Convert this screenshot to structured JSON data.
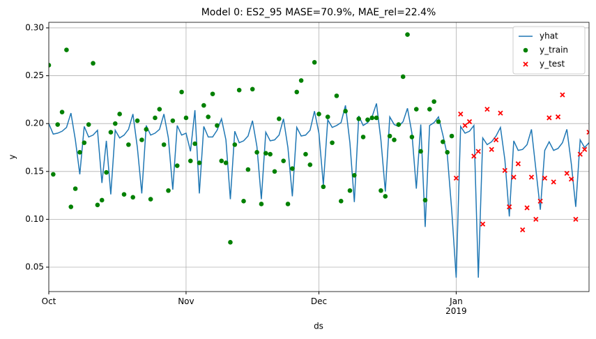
{
  "chart_data": {
    "type": "line",
    "title": "Model 0: ES2_95 MASE=70.9%, MAE_rel=22.4%",
    "x_label": "ds",
    "y_label": "y",
    "x": [
      0,
      1,
      2,
      3,
      4,
      5,
      6,
      7,
      8,
      9,
      10,
      11,
      12,
      13,
      14,
      15,
      16,
      17,
      18,
      19,
      20,
      21,
      22,
      23,
      24,
      25,
      26,
      27,
      28,
      29,
      30,
      31,
      32,
      33,
      34,
      35,
      36,
      37,
      38,
      39,
      40,
      41,
      42,
      43,
      44,
      45,
      46,
      47,
      48,
      49,
      50,
      51,
      52,
      53,
      54,
      55,
      56,
      57,
      58,
      59,
      60,
      61,
      62,
      63,
      64,
      65,
      66,
      67,
      68,
      69,
      70,
      71,
      72,
      73,
      74,
      75,
      76,
      77,
      78,
      79,
      80,
      81,
      82,
      83,
      84,
      85,
      86,
      87,
      88,
      89,
      90,
      91,
      92,
      93,
      94,
      95,
      96,
      97,
      98,
      99,
      100,
      101,
      102,
      103,
      104,
      105,
      106,
      107,
      108,
      109,
      110,
      111,
      112,
      113,
      114,
      115,
      116,
      117,
      118,
      119,
      120,
      121,
      122
    ],
    "xlim": [
      0,
      122
    ],
    "xticks": [
      {
        "value": 0,
        "label": "Oct"
      },
      {
        "value": 31,
        "label": "Nov"
      },
      {
        "value": 61,
        "label": "Dec"
      },
      {
        "value": 92,
        "label": "Jan\n2019"
      }
    ],
    "ylim": [
      0.0245,
      0.3058
    ],
    "yticks": [
      {
        "value": 0.05,
        "label": "0.05"
      },
      {
        "value": 0.1,
        "label": "0.10"
      },
      {
        "value": 0.15,
        "label": "0.15"
      },
      {
        "value": 0.2,
        "label": "0.20"
      },
      {
        "value": 0.25,
        "label": "0.25"
      },
      {
        "value": 0.3,
        "label": "0.30"
      }
    ],
    "grid": true,
    "legend": "upper right",
    "series": [
      {
        "name": "yhat",
        "type": "line",
        "color": "#1f77b4",
        "values": [
          0.2,
          0.189,
          0.19,
          0.192,
          0.196,
          0.211,
          0.183,
          0.147,
          0.197,
          0.186,
          0.188,
          0.193,
          0.138,
          0.182,
          0.126,
          0.193,
          0.185,
          0.188,
          0.194,
          0.21,
          0.175,
          0.127,
          0.198,
          0.188,
          0.19,
          0.194,
          0.21,
          0.185,
          0.131,
          0.198,
          0.188,
          0.19,
          0.171,
          0.214,
          0.127,
          0.197,
          0.186,
          0.186,
          0.193,
          0.205,
          0.183,
          0.121,
          0.192,
          0.18,
          0.182,
          0.187,
          0.203,
          0.176,
          0.121,
          0.191,
          0.182,
          0.183,
          0.188,
          0.205,
          0.175,
          0.124,
          0.196,
          0.187,
          0.188,
          0.193,
          0.213,
          0.19,
          0.136,
          0.204,
          0.196,
          0.198,
          0.201,
          0.219,
          0.18,
          0.118,
          0.208,
          0.198,
          0.201,
          0.207,
          0.221,
          0.183,
          0.129,
          0.207,
          0.199,
          0.197,
          0.202,
          0.216,
          0.19,
          0.132,
          0.199,
          0.092,
          0.198,
          0.201,
          0.207,
          0.188,
          0.167,
          0.109,
          0.039,
          0.197,
          0.19,
          0.192,
          0.198,
          0.039,
          0.185,
          0.178,
          0.181,
          0.187,
          0.196,
          0.162,
          0.103,
          0.182,
          0.172,
          0.173,
          0.178,
          0.194,
          0.152,
          0.11,
          0.172,
          0.181,
          0.172,
          0.174,
          0.18,
          0.194,
          0.158,
          0.113,
          0.183,
          0.175,
          0.18
        ]
      },
      {
        "name": "y_train",
        "type": "circle",
        "color": "#008000",
        "values": [
          0.261,
          0.147,
          0.199,
          0.212,
          0.277,
          0.113,
          0.132,
          0.17,
          0.18,
          0.199,
          0.263,
          0.115,
          0.12,
          0.149,
          0.191,
          0.2,
          0.21,
          0.126,
          0.178,
          0.123,
          0.203,
          0.183,
          0.194,
          0.121,
          0.206,
          0.215,
          0.178,
          0.13,
          0.203,
          0.156,
          0.233,
          0.206,
          0.161,
          0.179,
          0.159,
          0.219,
          0.207,
          0.231,
          0.198,
          0.161,
          0.159,
          0.076,
          0.178,
          0.235,
          0.119,
          0.152,
          0.236,
          0.17,
          0.116,
          0.169,
          0.168,
          0.15,
          0.205,
          0.161,
          0.116,
          0.153,
          0.233,
          0.245,
          0.168,
          0.157,
          0.264,
          0.21,
          0.134,
          0.207,
          0.18,
          0.229,
          0.119,
          0.213,
          0.13,
          0.146,
          0.205,
          0.186,
          0.204,
          0.206,
          0.206,
          0.13,
          0.124,
          0.187,
          0.183,
          0.199,
          0.249,
          0.293,
          0.186,
          0.215,
          0.171,
          0.12,
          0.215,
          0.223,
          0.202,
          0.181,
          0.17,
          0.187,
          null,
          null,
          null,
          null,
          null,
          null,
          null,
          null,
          null,
          null,
          null,
          null,
          null,
          null,
          null,
          null,
          null,
          null,
          null,
          null,
          null,
          null,
          null,
          null,
          null,
          null,
          null,
          null,
          null,
          null,
          null
        ]
      },
      {
        "name": "y_test",
        "type": "x",
        "color": "#ff0000",
        "values": [
          null,
          null,
          null,
          null,
          null,
          null,
          null,
          null,
          null,
          null,
          null,
          null,
          null,
          null,
          null,
          null,
          null,
          null,
          null,
          null,
          null,
          null,
          null,
          null,
          null,
          null,
          null,
          null,
          null,
          null,
          null,
          null,
          null,
          null,
          null,
          null,
          null,
          null,
          null,
          null,
          null,
          null,
          null,
          null,
          null,
          null,
          null,
          null,
          null,
          null,
          null,
          null,
          null,
          null,
          null,
          null,
          null,
          null,
          null,
          null,
          null,
          null,
          null,
          null,
          null,
          null,
          null,
          null,
          null,
          null,
          null,
          null,
          null,
          null,
          null,
          null,
          null,
          null,
          null,
          null,
          null,
          null,
          null,
          null,
          null,
          null,
          null,
          null,
          null,
          null,
          null,
          null,
          0.143,
          0.21,
          0.198,
          0.202,
          0.166,
          0.171,
          0.095,
          0.215,
          0.173,
          0.183,
          0.211,
          0.151,
          0.113,
          0.144,
          0.158,
          0.089,
          0.112,
          0.144,
          0.1,
          0.119,
          0.143,
          0.206,
          0.139,
          0.207,
          0.23,
          0.148,
          0.142,
          0.1,
          0.168,
          0.173,
          0.191
        ]
      }
    ]
  }
}
